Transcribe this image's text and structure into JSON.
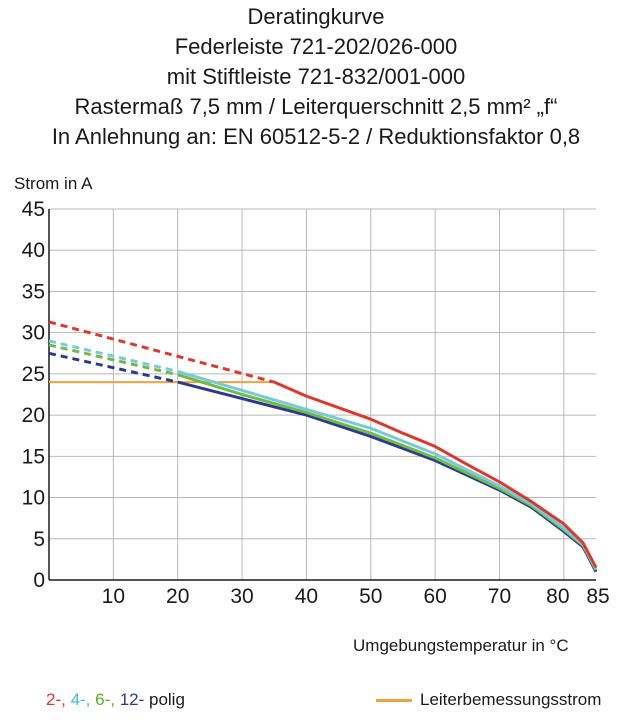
{
  "title_lines": [
    "Deratingkurve",
    "Federleiste 721-202/026-000",
    "mit Stiftleiste 721-832/001-000",
    "Rastermaß 7,5 mm / Leiterquerschnitt 2,5 mm² „f“",
    "In Anlehnung an: EN 60512-5-2 / Reduktionsfaktor 0,8"
  ],
  "chart_data": {
    "type": "line",
    "ylabel": "Strom in A",
    "xlabel": "Umgebungstemperatur in °C",
    "xlim": [
      0,
      85
    ],
    "ylim": [
      0,
      45
    ],
    "x_ticks": [
      10,
      20,
      30,
      40,
      50,
      60,
      70,
      80,
      85
    ],
    "y_ticks": [
      0,
      5,
      10,
      15,
      20,
      25,
      30,
      35,
      40,
      45
    ],
    "grid": true,
    "series": [
      {
        "name": "2-",
        "color": "#d83a2e",
        "dashed": {
          "x": [
            0,
            35
          ],
          "y": [
            31.3,
            24.0
          ]
        },
        "solid": {
          "x": [
            35,
            40,
            45,
            50,
            55,
            60,
            65,
            70,
            75,
            80,
            83,
            85
          ],
          "y": [
            24.0,
            22.3,
            20.9,
            19.5,
            17.8,
            16.2,
            14.0,
            11.9,
            9.5,
            6.8,
            4.5,
            1.5
          ]
        }
      },
      {
        "name": "4-",
        "color": "#78cad8",
        "dashed": {
          "x": [
            0,
            20
          ],
          "y": [
            29.0,
            25.3
          ]
        },
        "solid": {
          "x": [
            20,
            30,
            40,
            50,
            60,
            70,
            75,
            80,
            83,
            85
          ],
          "y": [
            25.3,
            23.0,
            20.7,
            18.4,
            15.3,
            11.4,
            9.2,
            6.3,
            4.3,
            1.3
          ]
        }
      },
      {
        "name": "6-",
        "color": "#74b84a",
        "dashed": {
          "x": [
            0,
            20
          ],
          "y": [
            28.5,
            24.9
          ]
        },
        "solid": {
          "x": [
            20,
            30,
            40,
            50,
            60,
            70,
            75,
            80,
            83,
            85
          ],
          "y": [
            24.9,
            22.5,
            20.3,
            17.8,
            14.8,
            11.1,
            9.0,
            6.1,
            4.2,
            1.2
          ]
        }
      },
      {
        "name": "12-",
        "color": "#2c3a8c",
        "dashed": {
          "x": [
            0,
            20
          ],
          "y": [
            27.5,
            24.0
          ]
        },
        "solid": {
          "x": [
            20,
            30,
            40,
            50,
            60,
            70,
            75,
            80,
            83,
            85
          ],
          "y": [
            24.0,
            22.0,
            20.0,
            17.4,
            14.5,
            10.9,
            8.8,
            5.9,
            4.0,
            1.0
          ]
        }
      }
    ],
    "reference_line": {
      "name": "Leiterbemessungsstrom",
      "color": "#f2a13a",
      "x": [
        0,
        35
      ],
      "y": [
        24.0,
        24.0
      ]
    },
    "legend_suffix": "polig"
  }
}
